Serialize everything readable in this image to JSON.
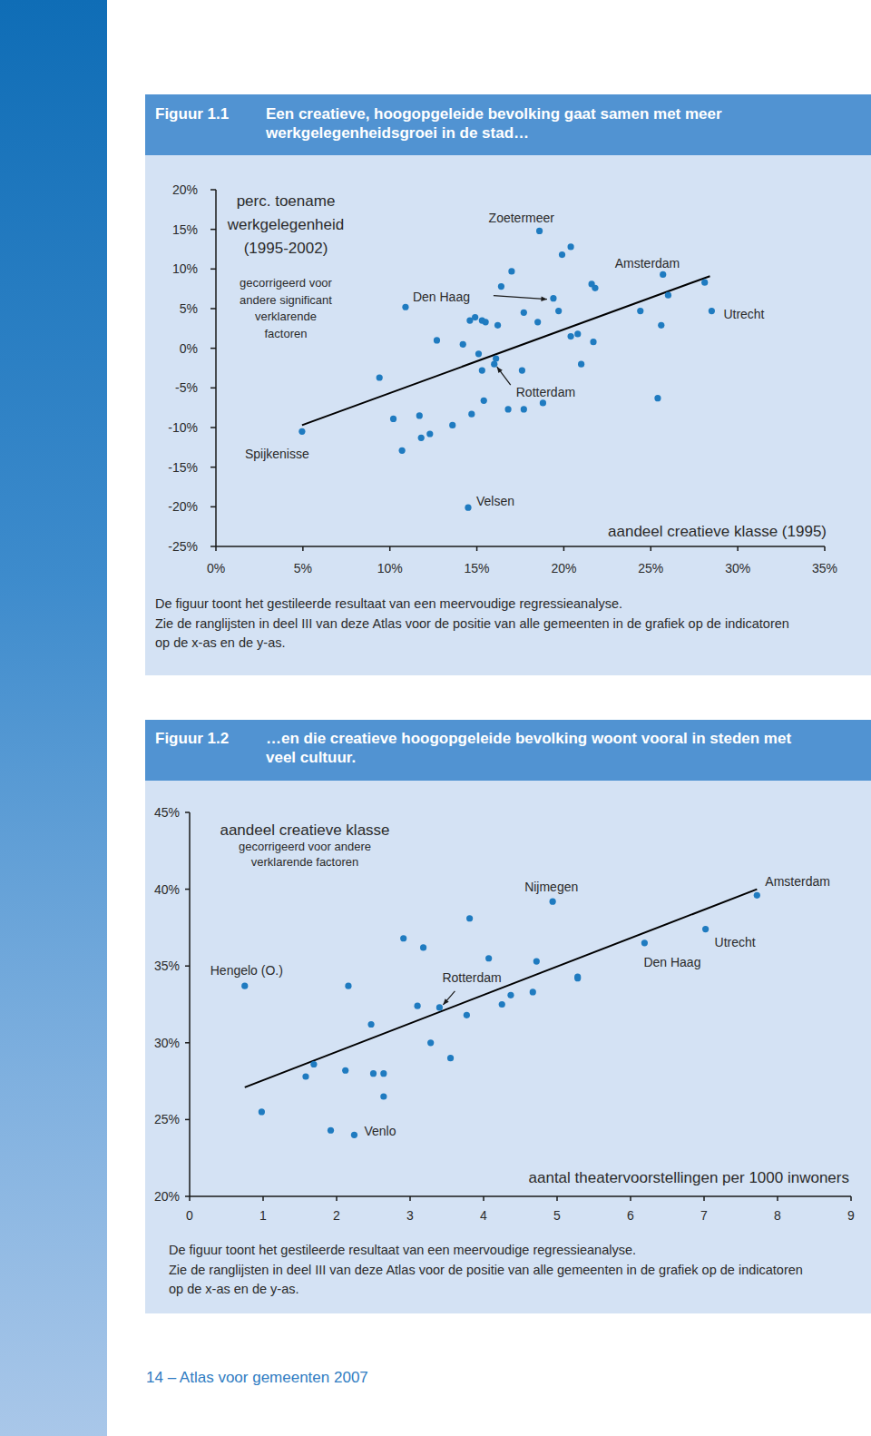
{
  "chart_data": [
    {
      "figure_label": "Figuur 1.1",
      "title": [
        "Een creatieve, hoogopgeleide bevolking gaat samen met meer",
        "werkgelegenheidsgroei in de stad…"
      ],
      "type": "scatter",
      "y_label": [
        "perc. toename",
        "werkgelegenheid",
        "(1995-2002)"
      ],
      "y_label_note": [
        "gecorrigeerd voor",
        "andere significant",
        "verklarende",
        "factoren"
      ],
      "x_label": "aandeel creatieve klasse (1995)",
      "x": [
        4.95,
        9.4,
        10.2,
        10.7,
        10.9,
        11.7,
        11.8,
        12.3,
        12.7,
        13.6,
        14.2,
        14.5,
        14.7,
        14.6,
        14.9,
        15.1,
        15.3,
        15.3,
        15.4,
        15.5,
        16.1,
        16.0,
        16.2,
        16.4,
        16.8,
        17.0,
        17.7,
        17.6,
        17.7,
        18.6,
        18.5,
        18.8,
        19.4,
        19.7,
        19.9,
        20.4,
        20.4,
        20.8,
        21.0,
        21.6,
        21.8,
        21.7,
        24.4,
        25.4,
        25.6,
        25.7,
        26.0,
        28.1,
        28.5
      ],
      "values": [
        -10.5,
        -3.7,
        -8.9,
        -12.9,
        5.2,
        -8.5,
        -11.3,
        -10.8,
        1.0,
        -9.7,
        0.5,
        -20.1,
        -8.3,
        3.5,
        3.9,
        -0.7,
        3.5,
        -2.8,
        -6.6,
        3.3,
        -1.3,
        -2.0,
        2.9,
        7.8,
        -7.7,
        9.7,
        4.5,
        -2.8,
        -7.7,
        14.8,
        3.3,
        -6.9,
        6.3,
        4.7,
        11.8,
        12.8,
        1.5,
        1.8,
        -2.0,
        8.1,
        7.6,
        0.8,
        4.7,
        -6.3,
        2.9,
        9.3,
        6.7,
        8.3,
        4.7
      ],
      "color": "#1f7bc0",
      "marker": "circle",
      "trend_line": {
        "x": [
          4.95,
          28.4
        ],
        "values": [
          -9.7,
          9.1
        ],
        "color": "#000000"
      },
      "xlim": [
        0,
        35
      ],
      "xticks": [
        {
          "value": 0,
          "label": "0%"
        },
        {
          "value": 5,
          "label": "5%"
        },
        {
          "value": 10,
          "label": "10%"
        },
        {
          "value": 15,
          "label": "15%"
        },
        {
          "value": 20,
          "label": "20%"
        },
        {
          "value": 25,
          "label": "25%"
        },
        {
          "value": 30,
          "label": "30%"
        },
        {
          "value": 35,
          "label": "35%"
        }
      ],
      "ylim": [
        -25,
        20
      ],
      "yticks": [
        {
          "value": -25,
          "label": "-25%"
        },
        {
          "value": -20,
          "label": "-20%"
        },
        {
          "value": -15,
          "label": "-15%"
        },
        {
          "value": -10,
          "label": "-10%"
        },
        {
          "value": -5,
          "label": "-5%"
        },
        {
          "value": 0,
          "label": "0%"
        },
        {
          "value": 5,
          "label": "5%"
        },
        {
          "value": 10,
          "label": "10%"
        },
        {
          "value": 15,
          "label": "15%"
        },
        {
          "value": 20,
          "label": "20%"
        }
      ],
      "annotations": [
        {
          "text": "Spijkenisse",
          "x": 4.95,
          "y": -10.5
        },
        {
          "text": "Velsen",
          "x": 14.5,
          "y": -20.1
        },
        {
          "text": "Rotterdam",
          "x": 16.0,
          "y": -2.0
        },
        {
          "text": "Den Haag",
          "x": 19.4,
          "y": 6.3
        },
        {
          "text": "Zoetermeer",
          "x": 18.6,
          "y": 14.8
        },
        {
          "text": "Amsterdam",
          "x": 25.7,
          "y": 9.3
        },
        {
          "text": "Utrecht",
          "x": 28.5,
          "y": 4.7
        }
      ],
      "caption": [
        "De figuur toont het gestileerde resultaat van een meervoudige regressieanalyse.",
        "Zie de ranglijsten in deel III van deze Atlas voor de positie van alle gemeenten in de grafiek op de indicatoren",
        "op de x-as en de y-as."
      ]
    },
    {
      "figure_label": "Figuur 1.2",
      "title": [
        "…en die creatieve hoogopgeleide bevolking woont vooral in steden met",
        "veel cultuur."
      ],
      "type": "scatter",
      "y_label": [
        "aandeel creatieve klasse"
      ],
      "y_label_note": [
        "gecorrigeerd voor andere",
        "verklarende factoren"
      ],
      "x_label": "aantal theatervoorstellingen per 1000 inwoners",
      "x": [
        0.75,
        0.98,
        1.58,
        1.69,
        1.92,
        2.12,
        2.16,
        2.24,
        2.47,
        2.5,
        2.64,
        2.64,
        2.91,
        3.1,
        3.18,
        3.28,
        3.4,
        3.55,
        3.77,
        3.81,
        4.07,
        4.25,
        4.37,
        4.67,
        4.72,
        4.94,
        5.28,
        5.28,
        6.19,
        7.02,
        7.72
      ],
      "values": [
        33.7,
        25.5,
        27.8,
        28.6,
        24.3,
        28.2,
        33.7,
        24.0,
        31.2,
        28.0,
        28.0,
        26.5,
        36.8,
        32.4,
        36.2,
        30.0,
        32.3,
        29.0,
        31.8,
        38.1,
        35.5,
        32.5,
        33.1,
        33.3,
        35.3,
        39.2,
        34.3,
        34.2,
        36.5,
        37.4,
        39.6
      ],
      "color": "#1f7bc0",
      "marker": "circle",
      "trend_line": {
        "x": [
          0.75,
          7.72
        ],
        "values": [
          27.1,
          40.0
        ],
        "color": "#000000"
      },
      "xlim": [
        0,
        9
      ],
      "xticks": [
        0,
        1,
        2,
        3,
        4,
        5,
        6,
        7,
        8,
        9
      ],
      "ylim": [
        20,
        45
      ],
      "yticks": [
        {
          "value": 20,
          "label": "20%"
        },
        {
          "value": 25,
          "label": "25%"
        },
        {
          "value": 30,
          "label": "30%"
        },
        {
          "value": 35,
          "label": "35%"
        },
        {
          "value": 40,
          "label": "40%"
        },
        {
          "value": 45,
          "label": "45%"
        }
      ],
      "annotations": [
        {
          "text": "Hengelo (O.)",
          "x": 0.75,
          "y": 33.7
        },
        {
          "text": "Venlo",
          "x": 2.24,
          "y": 24.0
        },
        {
          "text": "Rotterdam",
          "x": 3.4,
          "y": 32.3
        },
        {
          "text": "Nijmegen",
          "x": 4.94,
          "y": 39.2
        },
        {
          "text": "Den Haag",
          "x": 6.19,
          "y": 36.5
        },
        {
          "text": "Utrecht",
          "x": 7.02,
          "y": 37.4
        },
        {
          "text": "Amsterdam",
          "x": 7.72,
          "y": 39.6
        }
      ],
      "caption": [
        "De figuur toont het gestileerde resultaat van een meervoudige regressieanalyse.",
        "Zie de ranglijsten in deel III van deze Atlas voor de positie van alle gemeenten in de grafiek op de indicatoren",
        "op de x-as en de y-as."
      ]
    }
  ],
  "footer": "14 – Atlas voor gemeenten 2007"
}
